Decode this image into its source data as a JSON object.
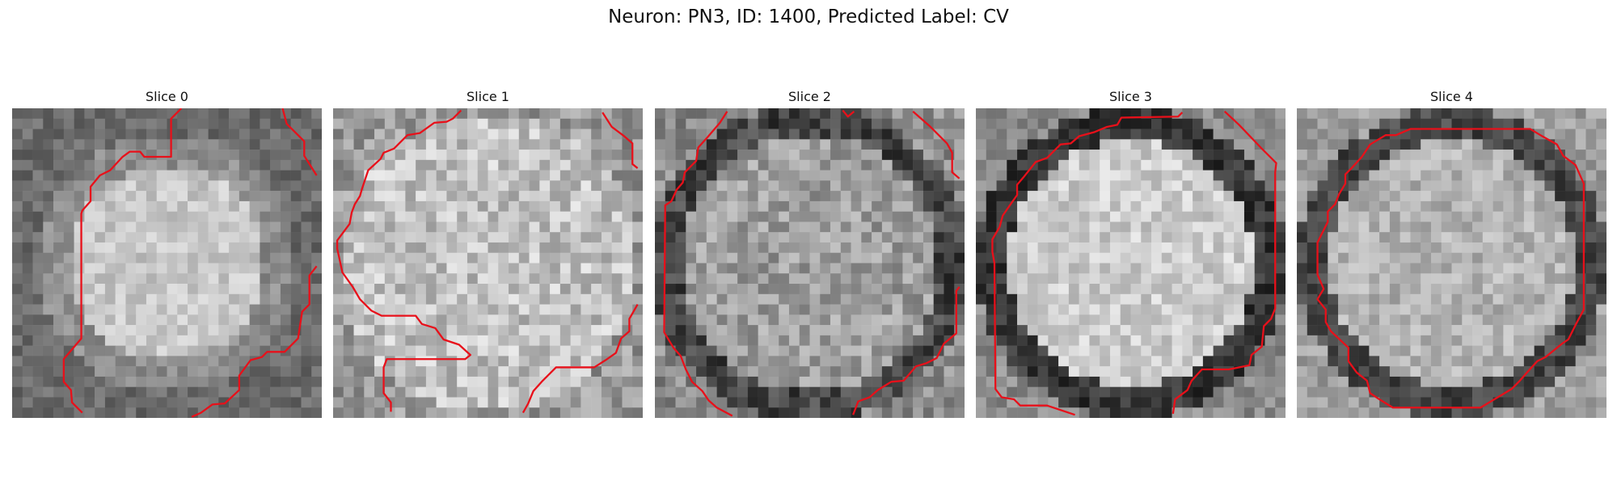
{
  "figure": {
    "title": "Neuron: PN3, ID: 1400, Predicted Label: CV"
  },
  "grid_size": 30,
  "contour_color": "#e8101a",
  "panels": [
    {
      "title": "Slice 0",
      "style": "dark_rim_soft",
      "seed": 11
    },
    {
      "title": "Slice 1",
      "style": "bright_noisy",
      "seed": 23
    },
    {
      "title": "Slice 2",
      "style": "gray_noisy_rim",
      "seed": 37
    },
    {
      "title": "Slice 3",
      "style": "bright_ring",
      "seed": 53
    },
    {
      "title": "Slice 4",
      "style": "gray_ring",
      "seed": 71
    }
  ]
}
